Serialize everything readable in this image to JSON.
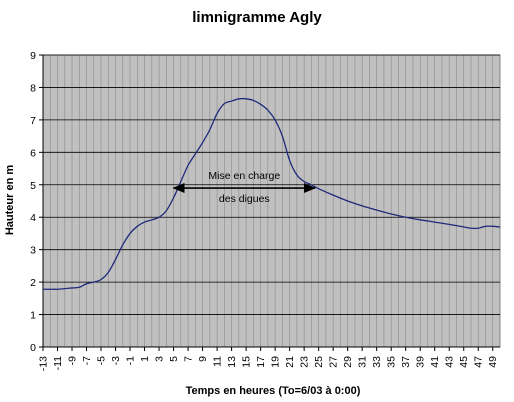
{
  "chart_data": {
    "type": "line",
    "title": "limnigramme Agly",
    "xlabel": "Temps en heures (To=6/03 à 0:00)",
    "ylabel": "Hauteur en m",
    "xlim": [
      -13,
      50
    ],
    "ylim": [
      0,
      9
    ],
    "grid": true,
    "x_ticks": [
      -13,
      -11,
      -9,
      -7,
      -5,
      -3,
      -1,
      1,
      3,
      5,
      7,
      9,
      11,
      13,
      15,
      17,
      19,
      21,
      23,
      25,
      27,
      29,
      31,
      33,
      35,
      37,
      39,
      41,
      43,
      45,
      47,
      49
    ],
    "y_ticks": [
      0,
      1,
      2,
      3,
      4,
      5,
      6,
      7,
      8,
      9
    ],
    "series": [
      {
        "color": "#1f2a7a",
        "points": [
          [
            -13,
            1.78
          ],
          [
            -12,
            1.78
          ],
          [
            -11,
            1.78
          ],
          [
            -10,
            1.8
          ],
          [
            -9,
            1.82
          ],
          [
            -8,
            1.84
          ],
          [
            -7,
            1.95
          ],
          [
            -6,
            2.0
          ],
          [
            -5,
            2.08
          ],
          [
            -4,
            2.3
          ],
          [
            -3,
            2.7
          ],
          [
            -2,
            3.15
          ],
          [
            -1,
            3.5
          ],
          [
            0,
            3.72
          ],
          [
            1,
            3.85
          ],
          [
            2,
            3.92
          ],
          [
            3,
            4.0
          ],
          [
            4,
            4.2
          ],
          [
            5,
            4.6
          ],
          [
            6,
            5.1
          ],
          [
            7,
            5.6
          ],
          [
            8,
            5.95
          ],
          [
            9,
            6.3
          ],
          [
            10,
            6.7
          ],
          [
            11,
            7.2
          ],
          [
            12,
            7.5
          ],
          [
            13,
            7.58
          ],
          [
            14,
            7.65
          ],
          [
            15,
            7.65
          ],
          [
            16,
            7.6
          ],
          [
            17,
            7.48
          ],
          [
            18,
            7.3
          ],
          [
            19,
            7.0
          ],
          [
            20,
            6.5
          ],
          [
            21,
            5.75
          ],
          [
            22,
            5.3
          ],
          [
            23,
            5.1
          ],
          [
            24,
            5.0
          ],
          [
            25,
            4.88
          ],
          [
            27,
            4.68
          ],
          [
            29,
            4.5
          ],
          [
            31,
            4.35
          ],
          [
            33,
            4.22
          ],
          [
            35,
            4.1
          ],
          [
            37,
            4.0
          ],
          [
            39,
            3.92
          ],
          [
            41,
            3.85
          ],
          [
            43,
            3.78
          ],
          [
            45,
            3.7
          ],
          [
            46,
            3.66
          ],
          [
            47,
            3.66
          ],
          [
            48,
            3.72
          ],
          [
            49,
            3.72
          ],
          [
            50,
            3.7
          ]
        ]
      }
    ],
    "annotation": {
      "lines": [
        "Mise en charge",
        "des digues"
      ],
      "arrow_x": [
        5,
        24.5
      ],
      "arrow_y": 4.9
    }
  }
}
